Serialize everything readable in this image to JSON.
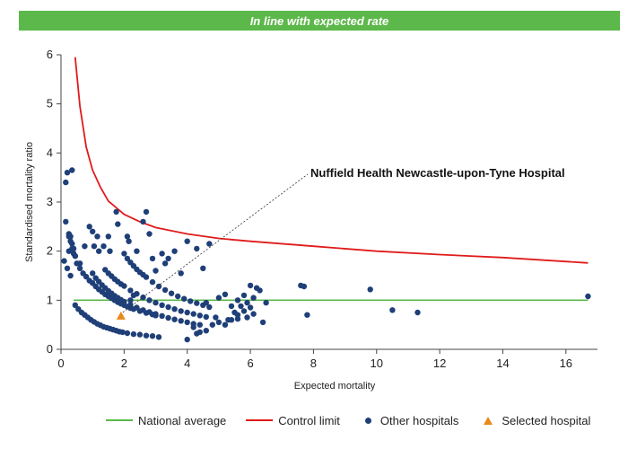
{
  "header": {
    "title": "In line with expected rate"
  },
  "colors": {
    "banner": "#5cb84a",
    "national_average": "#5cb84a",
    "control_limit": "#e01b1b",
    "other_hospitals": "#1f3f78",
    "selected_hospital": "#e8891a"
  },
  "chart_data": {
    "type": "scatter",
    "title": "",
    "xlabel": "Expected mortality",
    "ylabel": "Standardised mortality ratio",
    "xlim": [
      0,
      17
    ],
    "ylim": [
      0,
      6
    ],
    "x_ticks": [
      "0",
      "2",
      "4",
      "6",
      "8",
      "10",
      "12",
      "14",
      "16"
    ],
    "y_ticks": [
      "0",
      "1",
      "2",
      "3",
      "4",
      "5",
      "6"
    ],
    "grid": false,
    "legend_position": "bottom",
    "annotation": {
      "label": "Nuffield Health Newcastle-upon-Tyne Hospital",
      "points_to": [
        1.9,
        0.68
      ]
    },
    "series": [
      {
        "name": "National average",
        "kind": "line",
        "x": [
          0.4,
          16.7
        ],
        "y": [
          1,
          1
        ]
      },
      {
        "name": "Control limit",
        "kind": "line",
        "x": [
          0.45,
          0.6,
          0.8,
          1.0,
          1.25,
          1.5,
          2.0,
          2.5,
          3.0,
          4.0,
          5.0,
          6.0,
          8.0,
          10.0,
          12.0,
          14.0,
          16.7
        ],
        "y": [
          5.95,
          4.95,
          4.12,
          3.65,
          3.3,
          3.02,
          2.75,
          2.6,
          2.48,
          2.35,
          2.26,
          2.2,
          2.1,
          2.0,
          1.93,
          1.87,
          1.76
        ]
      },
      {
        "name": "Other hospitals",
        "kind": "points",
        "x": [
          0.15,
          0.2,
          0.35,
          0.25,
          0.15,
          0.3,
          0.35,
          0.4,
          0.45,
          0.5,
          0.6,
          0.7,
          0.8,
          0.9,
          1.0,
          1.1,
          1.2,
          1.3,
          1.4,
          1.5,
          1.6,
          1.7,
          1.8,
          1.9,
          2.0,
          2.1,
          2.2,
          2.3,
          2.5,
          2.7,
          2.9,
          3.0,
          0.45,
          0.55,
          0.65,
          0.75,
          0.85,
          0.95,
          1.05,
          1.15,
          1.25,
          1.35,
          1.45,
          1.55,
          1.65,
          1.75,
          1.85,
          1.95,
          2.1,
          2.3,
          2.5,
          2.7,
          2.9,
          3.1,
          1.0,
          1.1,
          1.2,
          1.3,
          1.4,
          1.5,
          1.6,
          1.7,
          1.8,
          1.9,
          2.0,
          2.2,
          2.4,
          2.6,
          2.8,
          3.0,
          3.2,
          3.4,
          3.6,
          3.8,
          4.0,
          4.2,
          4.4,
          1.4,
          1.5,
          1.6,
          1.7,
          1.8,
          1.9,
          2.0,
          2.2,
          2.4,
          2.6,
          2.8,
          3.0,
          3.2,
          3.4,
          3.6,
          3.8,
          4.0,
          4.2,
          4.4,
          4.6,
          2.0,
          2.1,
          2.2,
          2.3,
          2.4,
          2.5,
          2.6,
          2.7,
          2.9,
          3.1,
          3.3,
          3.5,
          3.7,
          3.9,
          4.1,
          4.3,
          4.5,
          4.7,
          0.25,
          0.35,
          0.4,
          0.1,
          0.2,
          0.3,
          0.25,
          0.3,
          0.45,
          0.6,
          0.75,
          0.9,
          1.0,
          1.05,
          1.15,
          1.2,
          1.35,
          1.5,
          1.55,
          1.75,
          1.8,
          2.1,
          2.15,
          2.6,
          2.7,
          2.4,
          2.8,
          2.9,
          3.2,
          3.4,
          3.6,
          4.0,
          4.3,
          4.7,
          4.5,
          3.8,
          3.0,
          3.3,
          2.2,
          2.3,
          4.2,
          4.4,
          4.6,
          4.8,
          5.0,
          5.2,
          5.4,
          5.6,
          5.8,
          6.0,
          5.3,
          5.5,
          5.7,
          5.9,
          6.1,
          6.3,
          6.5,
          5.6,
          5.8,
          6.0,
          6.2,
          6.4,
          5.6,
          5.9,
          6.1,
          5.4,
          5.2,
          5.0,
          4.9,
          4.3,
          4.0,
          4.6,
          7.6,
          7.7,
          7.8,
          9.8,
          10.5,
          11.3,
          16.7
        ],
        "y": [
          3.4,
          3.6,
          3.65,
          2.3,
          2.6,
          2.2,
          2.05,
          1.95,
          1.9,
          1.75,
          1.65,
          1.55,
          1.48,
          1.4,
          1.35,
          1.28,
          1.22,
          1.17,
          1.12,
          1.08,
          1.04,
          1.0,
          0.96,
          0.93,
          0.9,
          0.87,
          0.84,
          0.82,
          0.78,
          0.74,
          0.71,
          0.69,
          0.9,
          0.82,
          0.75,
          0.7,
          0.65,
          0.6,
          0.56,
          0.52,
          0.49,
          0.46,
          0.44,
          0.42,
          0.4,
          0.38,
          0.36,
          0.35,
          0.33,
          0.31,
          0.3,
          0.28,
          0.27,
          0.25,
          1.55,
          1.45,
          1.38,
          1.31,
          1.25,
          1.19,
          1.14,
          1.09,
          1.05,
          1.01,
          0.97,
          0.91,
          0.85,
          0.8,
          0.76,
          0.72,
          0.68,
          0.64,
          0.61,
          0.58,
          0.55,
          0.52,
          0.5,
          1.62,
          1.55,
          1.49,
          1.43,
          1.38,
          1.33,
          1.29,
          1.2,
          1.13,
          1.06,
          1.0,
          0.95,
          0.9,
          0.86,
          0.82,
          0.78,
          0.75,
          0.72,
          0.69,
          0.66,
          1.95,
          1.85,
          1.77,
          1.7,
          1.63,
          1.57,
          1.52,
          1.47,
          1.37,
          1.28,
          1.21,
          1.14,
          1.08,
          1.03,
          0.98,
          0.94,
          0.9,
          0.86,
          2.35,
          2.15,
          2.05,
          1.8,
          1.65,
          1.5,
          2.0,
          2.3,
          1.9,
          1.75,
          2.1,
          2.5,
          2.4,
          2.1,
          2.3,
          2.0,
          2.1,
          2.3,
          2.0,
          2.8,
          2.55,
          2.3,
          2.2,
          2.6,
          2.8,
          2.0,
          2.35,
          1.85,
          1.95,
          1.85,
          2.0,
          2.2,
          2.05,
          2.15,
          1.65,
          1.55,
          1.6,
          1.75,
          1.0,
          1.1,
          0.45,
          0.35,
          0.38,
          0.5,
          0.55,
          0.5,
          0.6,
          0.7,
          0.78,
          0.85,
          0.6,
          0.75,
          0.88,
          0.95,
          1.05,
          1.2,
          0.95,
          1.0,
          1.1,
          1.3,
          1.25,
          0.55,
          0.62,
          0.65,
          0.72,
          0.88,
          1.12,
          1.05,
          0.65,
          0.32,
          0.2,
          0.95,
          1.3,
          1.28,
          0.7,
          1.22,
          0.8,
          0.75,
          1.08
        ]
      },
      {
        "name": "Selected hospital",
        "kind": "marker",
        "x": [
          1.9
        ],
        "y": [
          0.68
        ]
      }
    ]
  },
  "legend": [
    {
      "label": "National average",
      "symbol": "line"
    },
    {
      "label": "Control limit",
      "symbol": "line"
    },
    {
      "label": "Other hospitals",
      "symbol": "dot"
    },
    {
      "label": "Selected hospital",
      "symbol": "triangle"
    }
  ]
}
